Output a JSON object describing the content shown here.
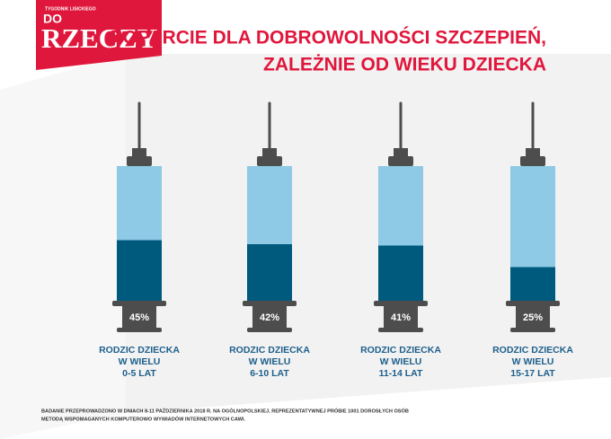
{
  "logo": {
    "top": "TYGODNIK LISICKIEGO",
    "do": "DO",
    "name": "RZECZY"
  },
  "chart_data": {
    "type": "syringe",
    "title": [
      "POPARCIE DLA DOBROWOLNOŚCI SZCZEPIEŃ,",
      "ZALEŻNIE OD WIEKU DZIECKA"
    ],
    "categories": [
      [
        "RODZIC DZIECKA",
        "W WIELU",
        "0-5 LAT"
      ],
      [
        "RODZIC DZIECKA",
        "W WIELU",
        "6-10 LAT"
      ],
      [
        "RODZIC DZIECKA",
        "W WIELU",
        "11-14 LAT"
      ],
      [
        "RODZIC DZIECKA",
        "W WIELU",
        "15-17 LAT"
      ]
    ],
    "values": [
      45,
      42,
      41,
      25
    ],
    "value_labels": [
      "45%",
      "42%",
      "41%",
      "25%"
    ],
    "ylim": [
      0,
      100
    ],
    "color": "#005a7e",
    "empty_color": "#8ec9e6"
  },
  "footnote": [
    "BADANIE PRZEPROWADZONO W DNIACH 8-11 PAŹDZIERNIKA 2018 R. NA OGÓLNOPOLSKIEJ, REPREZENTATYWNEJ PRÓBIE 1001 DOROSŁYCH OSÓB",
    "METODĄ WSPOMAGANYCH KOMPUTEROWO WYWIADÓW INTERNETOWYCH CAWI."
  ]
}
